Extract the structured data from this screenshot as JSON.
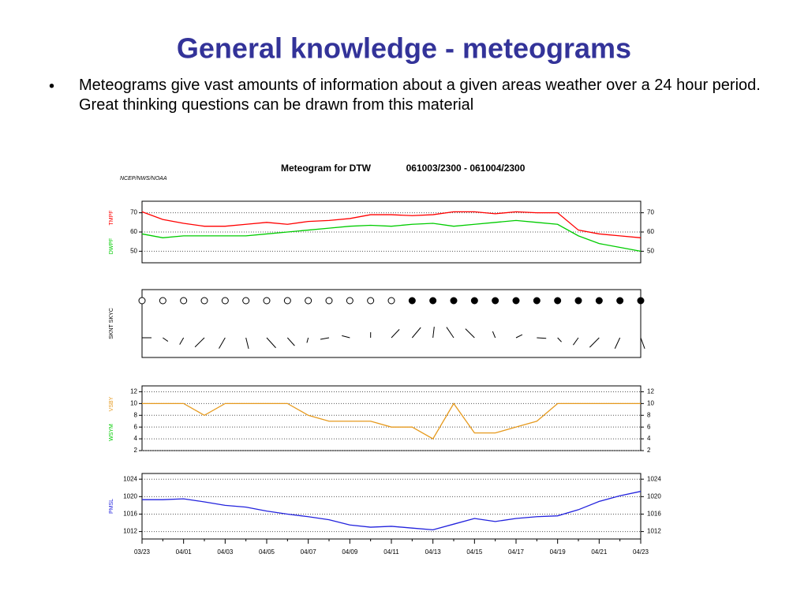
{
  "slide": {
    "title": "General knowledge - meteograms",
    "bullets": [
      "Meteograms give vast amounts of information about a given areas weather over a 24 hour period.  Great thinking questions can be drawn from this material"
    ]
  },
  "chart_data": {
    "type": "meteogram",
    "title": "Meteogram for DTW",
    "subtitle": "061003/2300 - 061004/2300",
    "source": "NCEP/NWS/NOAA",
    "categories": [
      "03/23",
      null,
      "04/01",
      null,
      "04/03",
      null,
      "04/05",
      null,
      "04/07",
      null,
      "04/09",
      null,
      "04/11",
      null,
      "04/13",
      null,
      "04/15",
      null,
      "04/17",
      null,
      "04/19",
      null,
      "04/21",
      null,
      "04/23"
    ],
    "panels": [
      {
        "type": "line",
        "ylim": [
          44,
          76
        ],
        "yticks": [
          50,
          60,
          70
        ],
        "grid": true,
        "series": [
          {
            "name": "TMPF",
            "color": "#ff0000",
            "values": [
              70.5,
              66.5,
              64.5,
              63,
              63,
              64,
              65,
              64,
              65.5,
              66,
              67,
              69,
              69,
              68.5,
              69,
              70.5,
              70.5,
              69.5,
              70.5,
              70,
              70,
              61,
              59,
              58,
              57
            ]
          },
          {
            "name": "DWPF",
            "color": "#00cc00",
            "values": [
              59,
              57,
              58,
              58,
              58,
              58,
              59,
              60,
              61,
              62,
              63,
              63.5,
              63,
              64,
              64.5,
              63,
              64,
              65,
              66,
              65,
              64,
              58,
              54,
              52,
              50
            ]
          }
        ]
      },
      {
        "type": "wind",
        "label": "SKNT SKYC"
      },
      {
        "type": "line",
        "ylim": [
          2,
          13
        ],
        "yticks": [
          2,
          4,
          6,
          8,
          10,
          12
        ],
        "grid": true,
        "series": [
          {
            "name": "VSBY",
            "color": "#e69a1e",
            "values": [
              10,
              10,
              10,
              8,
              10,
              10,
              10,
              10,
              8,
              7,
              7,
              7,
              6,
              6,
              4,
              10,
              5,
              5,
              6,
              7,
              10,
              10,
              10,
              10,
              10
            ]
          },
          {
            "name": "WSYM",
            "color": "#00cc00",
            "values": []
          }
        ]
      },
      {
        "type": "line",
        "ylim": [
          1010.3,
          1025.3
        ],
        "yticks": [
          1012,
          1016,
          1020,
          1024
        ],
        "grid": true,
        "series": [
          {
            "name": "PMSL",
            "color": "#2222dd",
            "values": [
              1019.3,
              1019.3,
              1019.5,
              1018.8,
              1018,
              1017.6,
              1016.7,
              1016,
              1015.4,
              1014.7,
              1013.5,
              1013,
              1013.2,
              1012.8,
              1012.4,
              1013.7,
              1015,
              1014.3,
              1015,
              1015.4,
              1015.6,
              1017,
              1018.9,
              1020.2,
              1021.2
            ]
          }
        ]
      }
    ]
  }
}
